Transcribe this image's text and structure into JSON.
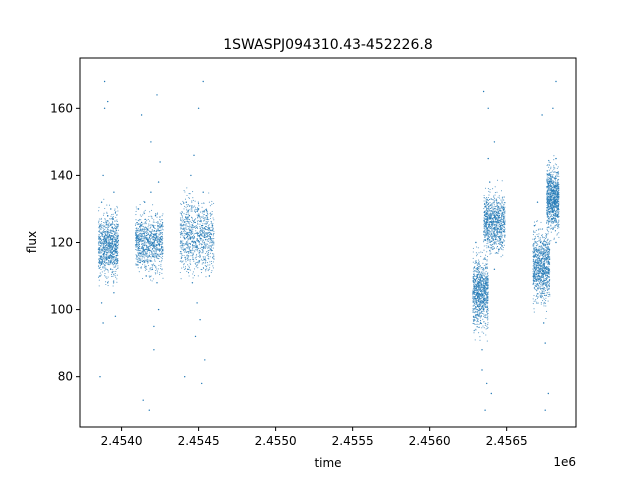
{
  "chart_data": {
    "type": "scatter",
    "title": "1SWASPJ094310.43-452226.8",
    "xlabel": "time",
    "ylabel": "flux",
    "x_offset_label": "1e6",
    "xlim": [
      2.45373,
      2.45695
    ],
    "ylim": [
      65,
      175
    ],
    "x_ticks": [
      {
        "value": 2.454,
        "label": "2.4540"
      },
      {
        "value": 2.4545,
        "label": "2.4545"
      },
      {
        "value": 2.455,
        "label": "2.4550"
      },
      {
        "value": 2.4555,
        "label": "2.4555"
      },
      {
        "value": 2.456,
        "label": "2.4560"
      },
      {
        "value": 2.4565,
        "label": "2.4565"
      }
    ],
    "y_ticks": [
      {
        "value": 80,
        "label": "80"
      },
      {
        "value": 100,
        "label": "100"
      },
      {
        "value": 120,
        "label": "120"
      },
      {
        "value": 140,
        "label": "140"
      },
      {
        "value": 160,
        "label": "160"
      }
    ],
    "grid": false,
    "marker_color": "#1f77b4",
    "series": [
      {
        "points": [
          [
            2.45385,
            118
          ],
          [
            2.45386,
            125
          ],
          [
            2.45386,
            110
          ],
          [
            2.45387,
            132
          ],
          [
            2.45387,
            102
          ],
          [
            2.45388,
            140
          ],
          [
            2.45388,
            96
          ],
          [
            2.45389,
            160
          ],
          [
            2.45389,
            168
          ],
          [
            2.4539,
            120
          ],
          [
            2.4539,
            115
          ],
          [
            2.45391,
            128
          ],
          [
            2.45391,
            108
          ],
          [
            2.45392,
            122
          ],
          [
            2.45393,
            112
          ],
          [
            2.45393,
            130
          ],
          [
            2.45394,
            118
          ],
          [
            2.45395,
            105
          ],
          [
            2.45395,
            135
          ],
          [
            2.45396,
            98
          ],
          [
            2.45397,
            120
          ],
          [
            2.45386,
            80
          ],
          [
            2.45391,
            162
          ],
          [
            2.4541,
            122
          ],
          [
            2.45411,
            130
          ],
          [
            2.45412,
            114
          ],
          [
            2.45413,
            126
          ],
          [
            2.45414,
            118
          ],
          [
            2.45415,
            132
          ],
          [
            2.45416,
            110
          ],
          [
            2.45417,
            124
          ],
          [
            2.45418,
            116
          ],
          [
            2.45419,
            135
          ],
          [
            2.4542,
            112
          ],
          [
            2.45421,
            120
          ],
          [
            2.45421,
            95
          ],
          [
            2.45422,
            128
          ],
          [
            2.45423,
            108
          ],
          [
            2.45424,
            138
          ],
          [
            2.45424,
            100
          ],
          [
            2.45425,
            144
          ],
          [
            2.45425,
            118
          ],
          [
            2.45426,
            125
          ],
          [
            2.45413,
            158
          ],
          [
            2.45414,
            73
          ],
          [
            2.45418,
            70
          ],
          [
            2.45419,
            150
          ],
          [
            2.45421,
            88
          ],
          [
            2.45423,
            164
          ],
          [
            2.4544,
            124
          ],
          [
            2.45441,
            118
          ],
          [
            2.45442,
            132
          ],
          [
            2.45443,
            112
          ],
          [
            2.45444,
            128
          ],
          [
            2.45445,
            140
          ],
          [
            2.45446,
            108
          ],
          [
            2.45447,
            146
          ],
          [
            2.45448,
            120
          ],
          [
            2.45449,
            102
          ],
          [
            2.4545,
            130
          ],
          [
            2.45451,
            97
          ],
          [
            2.45452,
            125
          ],
          [
            2.45453,
            135
          ],
          [
            2.45454,
            115
          ],
          [
            2.45455,
            128
          ],
          [
            2.45456,
            122
          ],
          [
            2.45457,
            110
          ],
          [
            2.45458,
            118
          ],
          [
            2.45448,
            92
          ],
          [
            2.4545,
            160
          ],
          [
            2.45452,
            78
          ],
          [
            2.45453,
            168
          ],
          [
            2.45454,
            85
          ],
          [
            2.45441,
            80
          ],
          [
            2.4563,
            120
          ],
          [
            2.45631,
            112
          ],
          [
            2.45632,
            104
          ],
          [
            2.45633,
            96
          ],
          [
            2.45634,
            88
          ],
          [
            2.45634,
            82
          ],
          [
            2.45635,
            100
          ],
          [
            2.45636,
            115
          ],
          [
            2.45637,
            130
          ],
          [
            2.45638,
            145
          ],
          [
            2.45639,
            138
          ],
          [
            2.4564,
            126
          ],
          [
            2.45641,
            118
          ],
          [
            2.45642,
            112
          ],
          [
            2.45643,
            122
          ],
          [
            2.45644,
            128
          ],
          [
            2.45645,
            118
          ],
          [
            2.45646,
            125
          ],
          [
            2.45647,
            120
          ],
          [
            2.45635,
            165
          ],
          [
            2.45636,
            70
          ],
          [
            2.45638,
            160
          ],
          [
            2.4564,
            75
          ],
          [
            2.45642,
            150
          ],
          [
            2.45637,
            78
          ],
          [
            2.45668,
            125
          ],
          [
            2.45669,
            118
          ],
          [
            2.4567,
            132
          ],
          [
            2.45671,
            110
          ],
          [
            2.45672,
            120
          ],
          [
            2.45673,
            104
          ],
          [
            2.45674,
            96
          ],
          [
            2.45675,
            90
          ],
          [
            2.45676,
            112
          ],
          [
            2.45677,
            118
          ],
          [
            2.45678,
            130
          ],
          [
            2.45679,
            138
          ],
          [
            2.4568,
            124
          ],
          [
            2.45681,
            132
          ],
          [
            2.45682,
            145
          ],
          [
            2.45682,
            120
          ],
          [
            2.45683,
            128
          ],
          [
            2.45673,
            158
          ],
          [
            2.45675,
            70
          ],
          [
            2.45677,
            75
          ],
          [
            2.4568,
            160
          ],
          [
            2.45682,
            168
          ]
        ],
        "bands": [
          {
            "x": [
              2.45385,
              2.45398
            ],
            "y": [
              104,
              134
            ]
          },
          {
            "x": [
              2.45409,
              2.45427
            ],
            "y": [
              106,
              134
            ]
          },
          {
            "x": [
              2.45438,
              2.4546
            ],
            "y": [
              104,
              140
            ]
          },
          {
            "x": [
              2.45628,
              2.45638
            ],
            "y": [
              88,
              122
            ]
          },
          {
            "x": [
              2.45635,
              2.45649
            ],
            "y": [
              112,
              140
            ]
          },
          {
            "x": [
              2.45667,
              2.45678
            ],
            "y": [
              96,
              130
            ]
          },
          {
            "x": [
              2.45676,
              2.45684
            ],
            "y": [
              118,
              148
            ]
          }
        ]
      }
    ]
  }
}
